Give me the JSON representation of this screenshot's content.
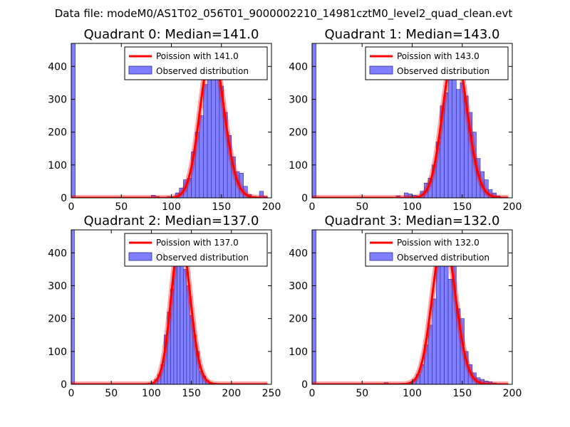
{
  "suptitle": "Data file: modeM0/AS1T02_056T01_9000002210_14981cztM0_level2_quad_clean.evt",
  "colors": {
    "poisson": "#ff0000",
    "hist_fill": "#7f7fff",
    "hist_edge": "#2a2a9a"
  },
  "chart_data": [
    {
      "type": "bar",
      "title": "Quadrant 0: Median=141.0",
      "median": 141.0,
      "xlim": [
        0,
        200
      ],
      "ylim": [
        0,
        470
      ],
      "xticks": [
        0,
        50,
        100,
        150,
        200
      ],
      "yticks": [
        0,
        100,
        200,
        300,
        400
      ],
      "legend": {
        "position": "top-right",
        "line_label": "Poission with 141.0",
        "hist_label": "Observed distribution"
      },
      "bin_width": 4,
      "bins": [
        {
          "x": 0,
          "y": 470
        },
        {
          "x": 80,
          "y": 8
        },
        {
          "x": 84,
          "y": 4
        },
        {
          "x": 96,
          "y": 4
        },
        {
          "x": 100,
          "y": 4
        },
        {
          "x": 104,
          "y": 15
        },
        {
          "x": 108,
          "y": 30
        },
        {
          "x": 112,
          "y": 55
        },
        {
          "x": 116,
          "y": 60
        },
        {
          "x": 120,
          "y": 140
        },
        {
          "x": 124,
          "y": 200
        },
        {
          "x": 128,
          "y": 250
        },
        {
          "x": 132,
          "y": 345
        },
        {
          "x": 136,
          "y": 370
        },
        {
          "x": 140,
          "y": 380
        },
        {
          "x": 144,
          "y": 440
        },
        {
          "x": 148,
          "y": 340
        },
        {
          "x": 152,
          "y": 260
        },
        {
          "x": 156,
          "y": 190
        },
        {
          "x": 160,
          "y": 125
        },
        {
          "x": 164,
          "y": 80
        },
        {
          "x": 168,
          "y": 75
        },
        {
          "x": 172,
          "y": 35
        },
        {
          "x": 176,
          "y": 10
        },
        {
          "x": 180,
          "y": 4
        },
        {
          "x": 188,
          "y": 20
        },
        {
          "x": 192,
          "y": 4
        }
      ]
    },
    {
      "type": "bar",
      "title": "Quadrant 1: Median=143.0",
      "median": 143.0,
      "xlim": [
        0,
        200
      ],
      "ylim": [
        0,
        470
      ],
      "xticks": [
        0,
        50,
        100,
        150,
        200
      ],
      "yticks": [
        0,
        100,
        200,
        300,
        400
      ],
      "legend": {
        "position": "top-right",
        "line_label": "Poission with 143.0",
        "hist_label": "Observed distribution"
      },
      "bin_width": 4,
      "bins": [
        {
          "x": 0,
          "y": 470
        },
        {
          "x": 84,
          "y": 6
        },
        {
          "x": 92,
          "y": 15
        },
        {
          "x": 96,
          "y": 12
        },
        {
          "x": 100,
          "y": 8
        },
        {
          "x": 104,
          "y": 6
        },
        {
          "x": 108,
          "y": 20
        },
        {
          "x": 112,
          "y": 45
        },
        {
          "x": 116,
          "y": 60
        },
        {
          "x": 120,
          "y": 100
        },
        {
          "x": 124,
          "y": 170
        },
        {
          "x": 128,
          "y": 280
        },
        {
          "x": 132,
          "y": 320
        },
        {
          "x": 136,
          "y": 360
        },
        {
          "x": 140,
          "y": 400
        },
        {
          "x": 144,
          "y": 330
        },
        {
          "x": 148,
          "y": 350
        },
        {
          "x": 152,
          "y": 310
        },
        {
          "x": 156,
          "y": 260
        },
        {
          "x": 160,
          "y": 200
        },
        {
          "x": 164,
          "y": 120
        },
        {
          "x": 168,
          "y": 80
        },
        {
          "x": 172,
          "y": 55
        },
        {
          "x": 176,
          "y": 25
        },
        {
          "x": 180,
          "y": 15
        },
        {
          "x": 184,
          "y": 6
        }
      ]
    },
    {
      "type": "bar",
      "title": "Quadrant 2: Median=137.0",
      "median": 137.0,
      "xlim": [
        0,
        250
      ],
      "ylim": [
        0,
        470
      ],
      "xticks": [
        0,
        50,
        100,
        150,
        200,
        250
      ],
      "yticks": [
        0,
        100,
        200,
        300,
        400
      ],
      "legend": {
        "position": "top-right",
        "line_label": "Poission with 137.0",
        "hist_label": "Observed distribution"
      },
      "bin_width": 4,
      "bins": [
        {
          "x": 0,
          "y": 470
        },
        {
          "x": 96,
          "y": 4
        },
        {
          "x": 104,
          "y": 15
        },
        {
          "x": 108,
          "y": 30
        },
        {
          "x": 112,
          "y": 60
        },
        {
          "x": 116,
          "y": 150
        },
        {
          "x": 120,
          "y": 220
        },
        {
          "x": 124,
          "y": 290
        },
        {
          "x": 128,
          "y": 400
        },
        {
          "x": 132,
          "y": 420
        },
        {
          "x": 136,
          "y": 380
        },
        {
          "x": 140,
          "y": 350
        },
        {
          "x": 144,
          "y": 300
        },
        {
          "x": 148,
          "y": 210
        },
        {
          "x": 152,
          "y": 150
        },
        {
          "x": 156,
          "y": 100
        },
        {
          "x": 160,
          "y": 40
        },
        {
          "x": 164,
          "y": 25
        },
        {
          "x": 168,
          "y": 12
        },
        {
          "x": 172,
          "y": 4
        }
      ]
    },
    {
      "type": "bar",
      "title": "Quadrant 3: Median=132.0",
      "median": 132.0,
      "xlim": [
        0,
        200
      ],
      "ylim": [
        0,
        470
      ],
      "xticks": [
        0,
        50,
        100,
        150,
        200
      ],
      "yticks": [
        0,
        100,
        200,
        300,
        400
      ],
      "legend": {
        "position": "top-right",
        "line_label": "Poission with 132.0",
        "hist_label": "Observed distribution"
      },
      "bin_width": 4,
      "bins": [
        {
          "x": 0,
          "y": 470
        },
        {
          "x": 72,
          "y": 5
        },
        {
          "x": 96,
          "y": 4
        },
        {
          "x": 100,
          "y": 15
        },
        {
          "x": 104,
          "y": 30
        },
        {
          "x": 108,
          "y": 60
        },
        {
          "x": 112,
          "y": 120
        },
        {
          "x": 116,
          "y": 180
        },
        {
          "x": 120,
          "y": 260
        },
        {
          "x": 124,
          "y": 360
        },
        {
          "x": 128,
          "y": 440
        },
        {
          "x": 132,
          "y": 380
        },
        {
          "x": 136,
          "y": 320
        },
        {
          "x": 140,
          "y": 430
        },
        {
          "x": 144,
          "y": 230
        },
        {
          "x": 148,
          "y": 200
        },
        {
          "x": 152,
          "y": 100
        },
        {
          "x": 156,
          "y": 60
        },
        {
          "x": 160,
          "y": 35
        },
        {
          "x": 164,
          "y": 20
        },
        {
          "x": 168,
          "y": 15
        },
        {
          "x": 172,
          "y": 10
        },
        {
          "x": 176,
          "y": 8
        },
        {
          "x": 180,
          "y": 4
        }
      ]
    }
  ]
}
